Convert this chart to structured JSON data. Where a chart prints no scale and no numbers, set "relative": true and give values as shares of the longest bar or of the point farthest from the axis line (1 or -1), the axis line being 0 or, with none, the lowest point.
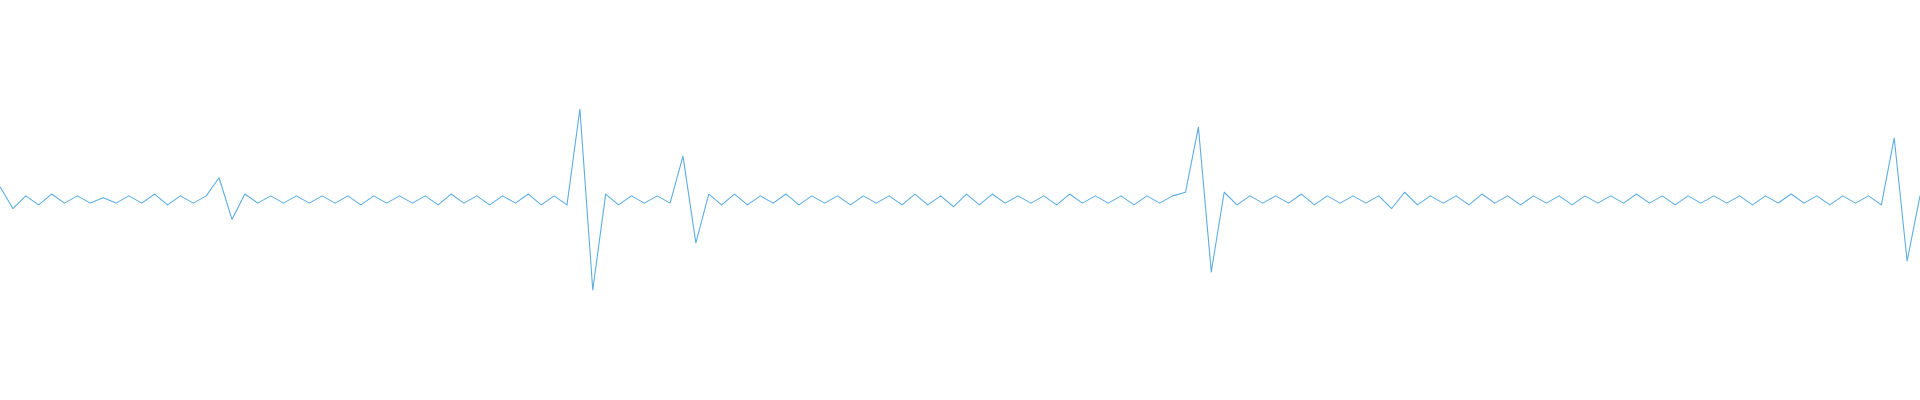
{
  "chart_data": {
    "type": "line",
    "relative": true,
    "color": "#5dade2",
    "categories": [
      null,
      null,
      null,
      null,
      null,
      null,
      null,
      null,
      null,
      null,
      null,
      null,
      null,
      null,
      null,
      null,
      null,
      null,
      null,
      null,
      null,
      null,
      null,
      null,
      null,
      null,
      null,
      null,
      null,
      null,
      null,
      null,
      null,
      null,
      null,
      null,
      null,
      null,
      null,
      null,
      null,
      null,
      null,
      null,
      null,
      null,
      null,
      null,
      null,
      null,
      null,
      null,
      null,
      null,
      null,
      null,
      null,
      null,
      null,
      null,
      null,
      null,
      null,
      null,
      null,
      null,
      null,
      null,
      null,
      null,
      null,
      null,
      null,
      null,
      null,
      null,
      null,
      null,
      null,
      null,
      null,
      null,
      null,
      null,
      null,
      null,
      null,
      null,
      null,
      null,
      null,
      null,
      null,
      null,
      null,
      null,
      null,
      null,
      null,
      null,
      null,
      null,
      null,
      null,
      null,
      null,
      null,
      null,
      null,
      null,
      null,
      null,
      null,
      null,
      null,
      null,
      null,
      null,
      null,
      null,
      null,
      null,
      null,
      null,
      null,
      null,
      null,
      null,
      null,
      null,
      null,
      null,
      null,
      null,
      null,
      null,
      null,
      null,
      null,
      null,
      null,
      null,
      null,
      null,
      null,
      null,
      null,
      null,
      null,
      null
    ],
    "values": [
      0.57,
      0.45,
      0.52,
      0.47,
      0.53,
      0.48,
      0.52,
      0.48,
      0.51,
      0.48,
      0.52,
      0.48,
      0.53,
      0.47,
      0.52,
      0.48,
      0.52,
      0.62,
      0.39,
      0.53,
      0.48,
      0.52,
      0.48,
      0.52,
      0.48,
      0.52,
      0.48,
      0.52,
      0.47,
      0.52,
      0.48,
      0.52,
      0.48,
      0.52,
      0.47,
      0.53,
      0.48,
      0.52,
      0.47,
      0.52,
      0.48,
      0.53,
      0.47,
      0.52,
      0.47,
      1.0,
      0.0,
      0.53,
      0.47,
      0.52,
      0.48,
      0.52,
      0.48,
      0.74,
      0.26,
      0.53,
      0.47,
      0.53,
      0.47,
      0.52,
      0.48,
      0.53,
      0.47,
      0.52,
      0.48,
      0.52,
      0.47,
      0.52,
      0.48,
      0.52,
      0.47,
      0.53,
      0.47,
      0.52,
      0.46,
      0.53,
      0.47,
      0.53,
      0.48,
      0.52,
      0.48,
      0.52,
      0.47,
      0.53,
      0.48,
      0.52,
      0.48,
      0.52,
      0.47,
      0.52,
      0.48,
      0.52,
      0.54,
      0.9,
      0.1,
      0.54,
      0.47,
      0.52,
      0.48,
      0.52,
      0.48,
      0.53,
      0.47,
      0.52,
      0.48,
      0.52,
      0.48,
      0.52,
      0.45,
      0.54,
      0.47,
      0.52,
      0.48,
      0.52,
      0.47,
      0.53,
      0.48,
      0.52,
      0.47,
      0.52,
      0.48,
      0.52,
      0.47,
      0.52,
      0.48,
      0.52,
      0.48,
      0.53,
      0.48,
      0.52,
      0.47,
      0.52,
      0.48,
      0.52,
      0.48,
      0.52,
      0.47,
      0.52,
      0.48,
      0.53,
      0.48,
      0.52,
      0.47,
      0.52,
      0.48,
      0.52,
      0.47,
      0.84,
      0.16,
      0.52
    ]
  }
}
